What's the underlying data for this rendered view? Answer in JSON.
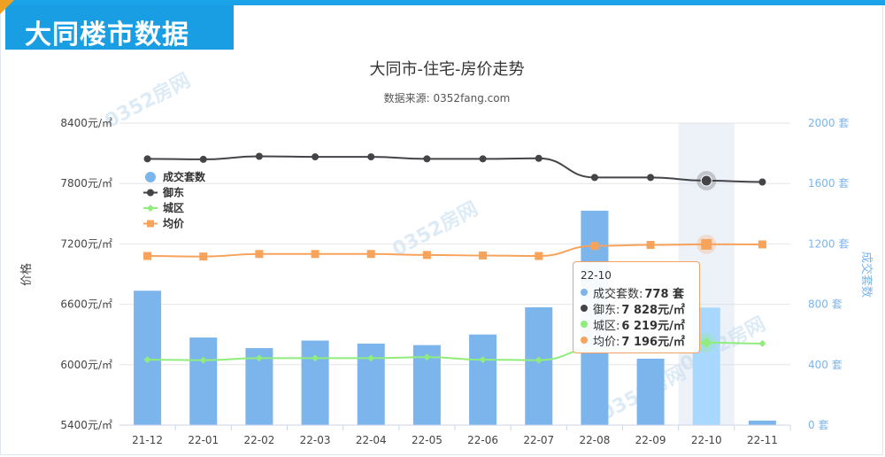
{
  "header": {
    "title": "大同楼市数据"
  },
  "watermark": "0352房网",
  "chart_data": {
    "type": "bar",
    "title": "大同市-住宅-房价走势",
    "subtitle": "数据来源: 0352fang.com",
    "categories": [
      "21-12",
      "22-01",
      "22-02",
      "22-03",
      "22-04",
      "22-05",
      "22-06",
      "22-07",
      "22-08",
      "22-09",
      "22-10",
      "22-11"
    ],
    "y_left": {
      "label": "价格",
      "min": 5400,
      "max": 8400,
      "ticks": [
        "5400元/㎡",
        "6000元/㎡",
        "6600元/㎡",
        "7200元/㎡",
        "7800元/㎡",
        "8400元/㎡"
      ]
    },
    "y_right": {
      "label": "成交套数",
      "min": 0,
      "max": 2000,
      "ticks": [
        "0 套",
        "400 套",
        "800 套",
        "1200 套",
        "1600 套",
        "2000 套"
      ]
    },
    "series": [
      {
        "name": "成交套数",
        "type": "bar",
        "axis": "right",
        "color": "#7cb5ec",
        "values": [
          890,
          580,
          510,
          560,
          540,
          530,
          600,
          780,
          1420,
          440,
          778,
          30
        ]
      },
      {
        "name": "御东",
        "type": "line",
        "axis": "left",
        "color": "#434348",
        "values": [
          8045,
          8040,
          8070,
          8065,
          8065,
          8045,
          8045,
          8050,
          7860,
          7860,
          7828,
          7815
        ]
      },
      {
        "name": "城区",
        "type": "line",
        "axis": "left",
        "color": "#90ed7d",
        "values": [
          6050,
          6045,
          6065,
          6065,
          6065,
          6075,
          6050,
          6045,
          6160,
          6150,
          6219,
          6210
        ]
      },
      {
        "name": "均价",
        "type": "line",
        "axis": "left",
        "color": "#f7a35c",
        "values": [
          7080,
          7075,
          7100,
          7100,
          7100,
          7090,
          7085,
          7080,
          7180,
          7190,
          7196,
          7195
        ]
      }
    ],
    "highlight_index": 10,
    "legend": "top-left",
    "tooltip": {
      "title": "22-10",
      "rows": [
        {
          "label": "成交套数:",
          "value": "778 套",
          "color": "#7cb5ec"
        },
        {
          "label": "御东:",
          "value": "7 828元/㎡",
          "color": "#434348"
        },
        {
          "label": "城区:",
          "value": "6 219元/㎡",
          "color": "#90ed7d"
        },
        {
          "label": "均价:",
          "value": "7 196元/㎡",
          "color": "#f7a35c"
        }
      ]
    }
  }
}
